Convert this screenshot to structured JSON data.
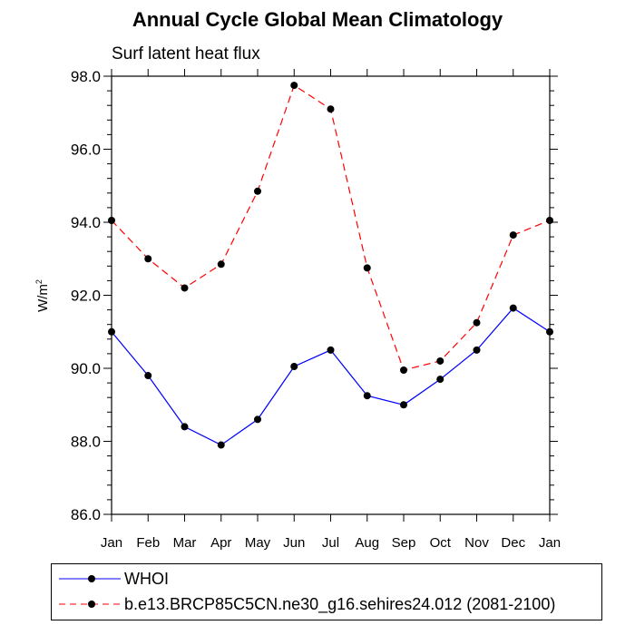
{
  "title": "Annual Cycle Global Mean Climatology",
  "subtitle": "Surf latent heat flux",
  "y_axis_label": "W/m",
  "y_axis_label_sup": "2",
  "chart_data": {
    "type": "line",
    "title": "Annual Cycle Global Mean Climatology",
    "subtitle": "Surf latent heat flux",
    "xlabel": "",
    "ylabel": "W/m2",
    "ylim": [
      86.0,
      98.0
    ],
    "y_ticks": [
      "86.0",
      "88.0",
      "90.0",
      "92.0",
      "94.0",
      "96.0",
      "98.0"
    ],
    "categories": [
      "Jan",
      "Feb",
      "Mar",
      "Apr",
      "May",
      "Jun",
      "Jul",
      "Aug",
      "Sep",
      "Oct",
      "Nov",
      "Dec",
      "Jan"
    ],
    "series": [
      {
        "name": "WHOI",
        "color": "#0000ff",
        "style": "solid",
        "values": [
          91.0,
          89.8,
          88.4,
          87.9,
          88.6,
          90.05,
          90.5,
          89.25,
          89.0,
          89.7,
          90.5,
          91.65,
          91.0
        ]
      },
      {
        "name": "b.e13.BRCP85C5CN.ne30_g16.sehires24.012 (2081-2100)",
        "color": "#ff0000",
        "style": "dashed",
        "values": [
          94.05,
          93.0,
          92.2,
          92.85,
          94.85,
          97.75,
          97.1,
          92.75,
          89.95,
          90.2,
          91.25,
          93.65,
          94.05
        ]
      }
    ],
    "legend_position": "bottom"
  }
}
